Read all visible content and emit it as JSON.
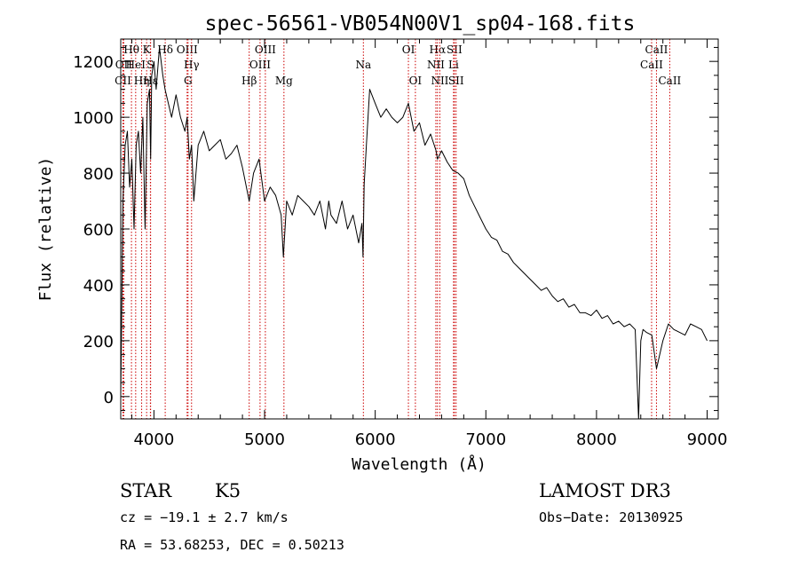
{
  "chart_data": {
    "type": "line",
    "title": "spec-56561-VB054N00V1_sp04-168.fits",
    "xlabel": "Wavelength (Å)",
    "ylabel": "Flux (relative)",
    "xlim": [
      3700,
      9100
    ],
    "ylim": [
      -80,
      1280
    ],
    "xticks": [
      4000,
      5000,
      6000,
      7000,
      8000,
      9000
    ],
    "yticks": [
      0,
      200,
      400,
      600,
      800,
      1000,
      1200
    ],
    "line_color": "#000000",
    "marker_color": "#cc0000",
    "spectrum": {
      "name": "flux",
      "x": [
        3700,
        3720,
        3740,
        3760,
        3780,
        3800,
        3820,
        3840,
        3860,
        3880,
        3900,
        3920,
        3940,
        3960,
        3970,
        3980,
        4000,
        4020,
        4050,
        4080,
        4100,
        4130,
        4160,
        4200,
        4240,
        4280,
        4300,
        4320,
        4340,
        4360,
        4400,
        4450,
        4500,
        4550,
        4600,
        4650,
        4700,
        4750,
        4800,
        4861,
        4900,
        4950,
        5000,
        5050,
        5100,
        5150,
        5170,
        5200,
        5250,
        5300,
        5350,
        5400,
        5450,
        5500,
        5550,
        5580,
        5600,
        5650,
        5700,
        5750,
        5800,
        5850,
        5880,
        5890,
        5900,
        5920,
        5950,
        6000,
        6050,
        6100,
        6150,
        6200,
        6250,
        6300,
        6350,
        6400,
        6450,
        6500,
        6550,
        6563,
        6600,
        6650,
        6700,
        6750,
        6800,
        6850,
        6900,
        6950,
        7000,
        7050,
        7100,
        7150,
        7200,
        7250,
        7300,
        7350,
        7400,
        7450,
        7500,
        7550,
        7600,
        7650,
        7700,
        7750,
        7800,
        7850,
        7900,
        7950,
        8000,
        8050,
        8100,
        8150,
        8200,
        8250,
        8300,
        8350,
        8380,
        8400,
        8420,
        8450,
        8500,
        8542,
        8600,
        8650,
        8700,
        8750,
        8800,
        8850,
        8900,
        8950,
        9000
      ],
      "y": [
        0,
        700,
        900,
        950,
        750,
        850,
        600,
        900,
        950,
        800,
        1000,
        600,
        1050,
        1100,
        850,
        1150,
        1200,
        1100,
        1250,
        1150,
        1100,
        1050,
        1000,
        1080,
        1000,
        950,
        1000,
        850,
        900,
        700,
        900,
        950,
        880,
        900,
        920,
        850,
        870,
        900,
        820,
        700,
        800,
        850,
        700,
        750,
        720,
        650,
        500,
        700,
        650,
        720,
        700,
        680,
        650,
        700,
        600,
        700,
        650,
        620,
        700,
        600,
        650,
        550,
        620,
        500,
        760,
        900,
        1100,
        1050,
        1000,
        1030,
        1000,
        980,
        1000,
        1050,
        950,
        980,
        900,
        940,
        880,
        850,
        880,
        840,
        810,
        800,
        780,
        720,
        680,
        640,
        600,
        570,
        560,
        520,
        510,
        480,
        460,
        440,
        420,
        400,
        380,
        390,
        360,
        340,
        350,
        320,
        330,
        300,
        300,
        290,
        310,
        280,
        290,
        260,
        270,
        250,
        260,
        240,
        -80,
        200,
        240,
        230,
        220,
        100,
        200,
        260,
        240,
        230,
        220,
        260,
        250,
        240,
        200
      ]
    },
    "line_markers": [
      {
        "label": "Hθ",
        "x": 3797,
        "row": 0
      },
      {
        "label": "OII",
        "x": 3727,
        "row": 1
      },
      {
        "label": "CII",
        "x": 3720,
        "row": 2
      },
      {
        "label": "HeI",
        "x": 3835,
        "row": 1
      },
      {
        "label": "Hη",
        "x": 3889,
        "row": 2
      },
      {
        "label": "K",
        "x": 3934,
        "row": 0
      },
      {
        "label": "S",
        "x": 3968,
        "row": 1
      },
      {
        "label": "Hε",
        "x": 3970,
        "row": 2
      },
      {
        "label": "Hδ",
        "x": 4102,
        "row": 0
      },
      {
        "label": "OIII",
        "x": 4300,
        "row": 0
      },
      {
        "label": "Hγ",
        "x": 4340,
        "row": 1
      },
      {
        "label": "G",
        "x": 4308,
        "row": 2
      },
      {
        "label": "OIII",
        "x": 5007,
        "row": 0
      },
      {
        "label": "OIII",
        "x": 4959,
        "row": 1
      },
      {
        "label": "Hβ",
        "x": 4861,
        "row": 2
      },
      {
        "label": "Mg",
        "x": 5175,
        "row": 2
      },
      {
        "label": "Na",
        "x": 5893,
        "row": 1
      },
      {
        "label": "OI",
        "x": 6300,
        "row": 0
      },
      {
        "label": "OI",
        "x": 6363,
        "row": 2
      },
      {
        "label": "Hα",
        "x": 6563,
        "row": 0
      },
      {
        "label": "SII",
        "x": 6716,
        "row": 0
      },
      {
        "label": "NII",
        "x": 6548,
        "row": 1
      },
      {
        "label": "Li",
        "x": 6708,
        "row": 1
      },
      {
        "label": "NII",
        "x": 6584,
        "row": 2
      },
      {
        "label": "SII",
        "x": 6731,
        "row": 2
      },
      {
        "label": "CaII",
        "x": 8542,
        "row": 0
      },
      {
        "label": "CaII",
        "x": 8498,
        "row": 1
      },
      {
        "label": "CaII",
        "x": 8662,
        "row": 2
      }
    ],
    "annotations": {
      "class": "STAR",
      "subclass": "K5",
      "survey": "LAMOST DR3",
      "redshift": "cz = −19.1 ± 2.7 km/s",
      "obs_date": "Obs−Date: 20130925",
      "coords": "RA =  53.68253, DEC =    0.50213"
    }
  }
}
